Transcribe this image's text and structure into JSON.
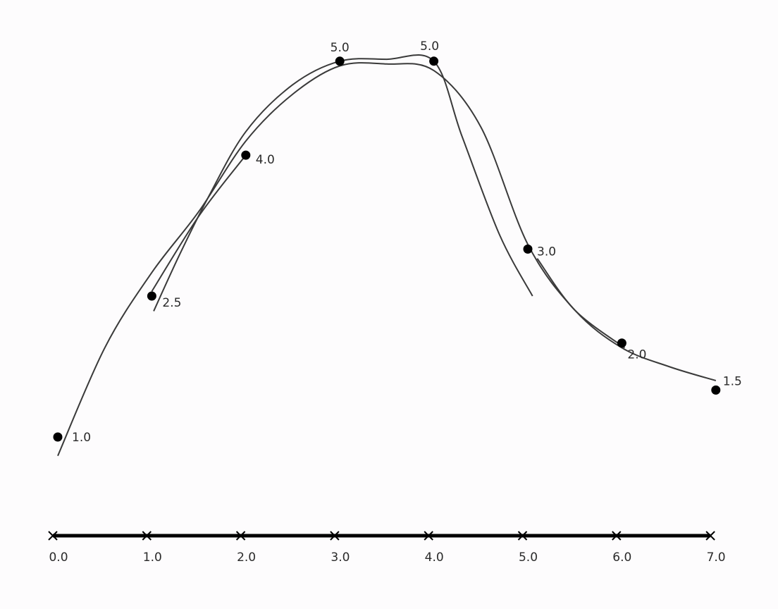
{
  "chart_data": {
    "type": "scatter",
    "x": [
      0,
      1,
      2,
      3,
      4,
      5,
      6,
      7
    ],
    "y": [
      1.0,
      2.5,
      4.0,
      5.0,
      5.0,
      3.0,
      2.0,
      1.5
    ],
    "data_labels": [
      "1.0",
      "2.5",
      "4.0",
      "5.0",
      "5.0",
      "3.0",
      "2.0",
      "1.5"
    ],
    "x_tick_labels": [
      "0.0",
      "1.0",
      "2.0",
      "3.0",
      "4.0",
      "5.0",
      "6.0",
      "7.0"
    ],
    "xlim": [
      0,
      7
    ],
    "ylim": [
      0,
      5
    ],
    "y_axis_shown": false,
    "grid": false,
    "legend": "none",
    "fitted_curves": 2,
    "point_color": "#000000",
    "curve_color": "#3a3a3a"
  }
}
